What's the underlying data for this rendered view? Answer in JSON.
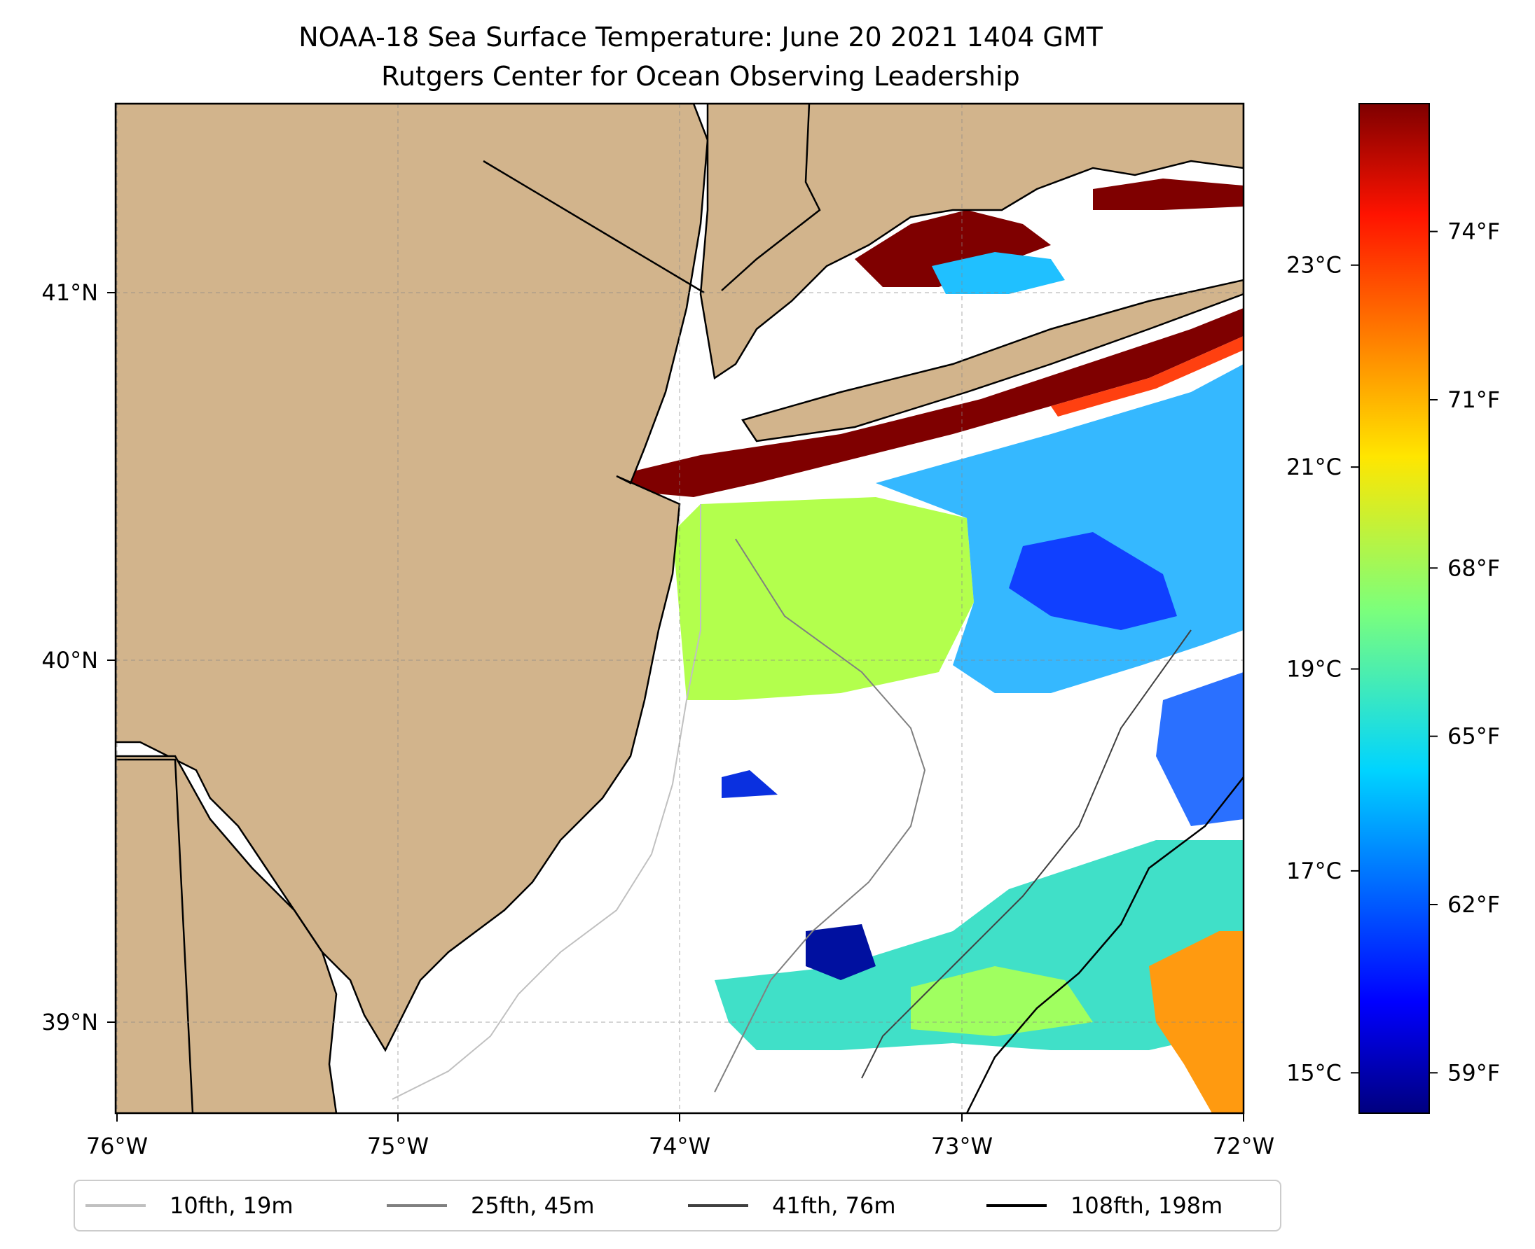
{
  "title": {
    "line1": "NOAA-18 Sea Surface Temperature: June 20 2021 1404 GMT",
    "line2": "Rutgers Center for Ocean Observing Leadership"
  },
  "map": {
    "lon_range": [
      -76,
      -72
    ],
    "lat_range": [
      38.75,
      41.55
    ],
    "x_ticks": [
      "76°W",
      "75°W",
      "74°W",
      "73°W",
      "72°W"
    ],
    "y_ticks": [
      "41°N",
      "40°N",
      "39°N"
    ],
    "land_color": "#d2b48c",
    "ocean_color": "#ffffff",
    "gridlines": true
  },
  "colorbar": {
    "colormap": "jet",
    "range_c": [
      14.6,
      24.6
    ],
    "celsius_ticks": [
      "23°C",
      "21°C",
      "19°C",
      "17°C",
      "15°C"
    ],
    "celsius_values": [
      23,
      21,
      19,
      17,
      15
    ],
    "fahrenheit_ticks": [
      "74°F",
      "71°F",
      "68°F",
      "65°F",
      "62°F",
      "59°F"
    ],
    "fahrenheit_values": [
      74,
      71,
      68,
      65,
      62,
      59
    ]
  },
  "legend": {
    "items": [
      {
        "label": "10fth, 19m",
        "color": "#c0c0c0"
      },
      {
        "label": "25fth, 45m",
        "color": "#808080"
      },
      {
        "label": "41fth, 76m",
        "color": "#404040"
      },
      {
        "label": "108fth, 198m",
        "color": "#000000"
      }
    ]
  }
}
